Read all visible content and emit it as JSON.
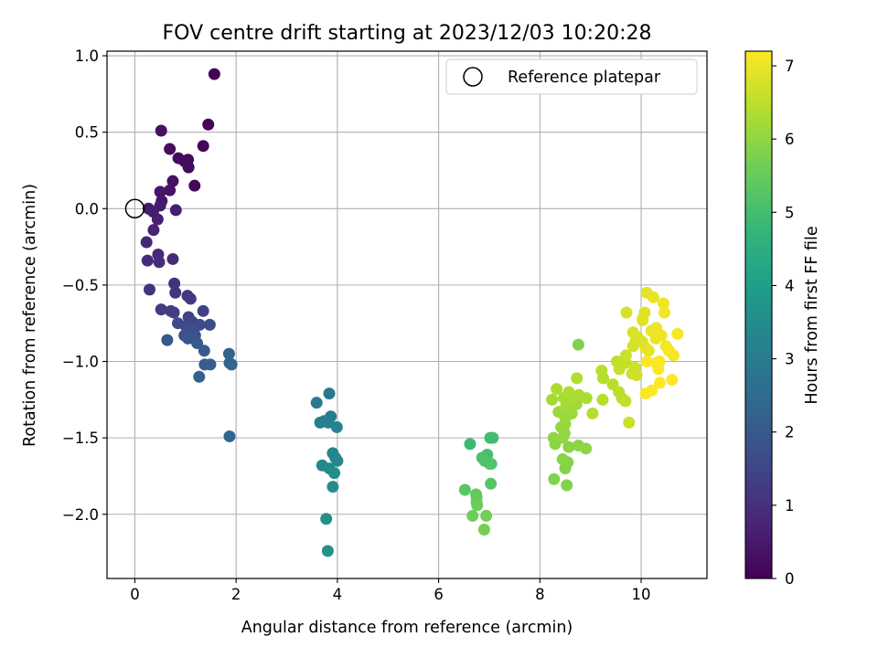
{
  "chart_data": {
    "type": "scatter",
    "title": "FOV centre drift starting at 2023/12/03 10:20:28",
    "xlabel": "Angular distance from reference (arcmin)",
    "ylabel": "Rotation from reference (arcmin)",
    "xlim": [
      -0.55,
      11.3
    ],
    "ylim": [
      -2.42,
      1.03
    ],
    "xticks": [
      0,
      2,
      4,
      6,
      8,
      10
    ],
    "yticks": [
      1.0,
      0.5,
      0.0,
      -0.5,
      -1.0,
      -1.5,
      -2.0
    ],
    "xtick_labels": [
      "0",
      "2",
      "4",
      "6",
      "8",
      "10"
    ],
    "ytick_labels": [
      "1.0",
      "0.5",
      "0.0",
      "−0.5",
      "−1.0",
      "−1.5",
      "−2.0"
    ],
    "grid": true,
    "legend": {
      "placement": "top-right",
      "label": "Reference platepar"
    },
    "colormap": "viridis",
    "colorbar": {
      "label": "Hours from first FF file",
      "range": [
        0,
        7.2
      ],
      "ticks": [
        0,
        1,
        2,
        3,
        4,
        5,
        6,
        7
      ],
      "tick_labels": [
        "0",
        "1",
        "2",
        "3",
        "4",
        "5",
        "6",
        "7"
      ]
    },
    "reference_point": {
      "x": 0,
      "y": 0
    },
    "points": [
      [
        1.57,
        0.88,
        0.05
      ],
      [
        1.45,
        0.55,
        0.08
      ],
      [
        1.35,
        0.41,
        0.1
      ],
      [
        1.18,
        0.15,
        0.12
      ],
      [
        1.05,
        0.32,
        0.15
      ],
      [
        1.06,
        0.27,
        0.18
      ],
      [
        0.98,
        0.31,
        0.2
      ],
      [
        0.86,
        0.33,
        0.22
      ],
      [
        0.69,
        0.39,
        0.25
      ],
      [
        0.52,
        0.51,
        0.3
      ],
      [
        0.75,
        0.18,
        0.35
      ],
      [
        0.69,
        0.12,
        0.38
      ],
      [
        0.5,
        0.11,
        0.4
      ],
      [
        0.53,
        0.05,
        0.45
      ],
      [
        0.5,
        0.02,
        0.5
      ],
      [
        0.27,
        0.0,
        0.55
      ],
      [
        0.36,
        -0.02,
        0.58
      ],
      [
        0.81,
        -0.01,
        0.6
      ],
      [
        0.45,
        -0.07,
        0.65
      ],
      [
        0.37,
        -0.14,
        0.7
      ],
      [
        0.23,
        -0.22,
        0.75
      ],
      [
        0.46,
        -0.3,
        0.8
      ],
      [
        0.75,
        -0.33,
        0.85
      ],
      [
        0.25,
        -0.34,
        0.88
      ],
      [
        0.48,
        -0.35,
        0.9
      ],
      [
        0.78,
        -0.49,
        1.0
      ],
      [
        0.29,
        -0.53,
        1.05
      ],
      [
        0.8,
        -0.55,
        1.1
      ],
      [
        1.04,
        -0.57,
        1.15
      ],
      [
        1.1,
        -0.59,
        1.2
      ],
      [
        0.52,
        -0.66,
        1.25
      ],
      [
        0.71,
        -0.67,
        1.3
      ],
      [
        0.77,
        -0.68,
        1.35
      ],
      [
        1.35,
        -0.67,
        1.4
      ],
      [
        1.06,
        -0.71,
        1.45
      ],
      [
        1.13,
        -0.74,
        1.5
      ],
      [
        0.85,
        -0.75,
        1.55
      ],
      [
        1.01,
        -0.77,
        1.6
      ],
      [
        1.28,
        -0.76,
        1.65
      ],
      [
        1.48,
        -0.76,
        1.7
      ],
      [
        1.16,
        -0.8,
        1.75
      ],
      [
        0.98,
        -0.83,
        1.8
      ],
      [
        1.19,
        -0.83,
        1.85
      ],
      [
        1.05,
        -0.85,
        1.9
      ],
      [
        0.64,
        -0.86,
        1.95
      ],
      [
        1.23,
        -0.88,
        2.0
      ],
      [
        1.37,
        -0.93,
        2.05
      ],
      [
        1.38,
        -1.02,
        2.1
      ],
      [
        1.49,
        -1.02,
        2.15
      ],
      [
        1.27,
        -1.1,
        2.2
      ],
      [
        1.86,
        -0.95,
        2.25
      ],
      [
        1.87,
        -1.01,
        2.3
      ],
      [
        1.91,
        -1.02,
        2.35
      ],
      [
        1.87,
        -1.49,
        2.4
      ],
      [
        3.84,
        -1.21,
        2.9
      ],
      [
        3.59,
        -1.27,
        2.95
      ],
      [
        3.87,
        -1.36,
        3.0
      ],
      [
        3.74,
        -1.39,
        3.05
      ],
      [
        3.66,
        -1.4,
        3.1
      ],
      [
        3.82,
        -1.4,
        3.15
      ],
      [
        3.99,
        -1.43,
        3.2
      ],
      [
        3.91,
        -1.6,
        3.25
      ],
      [
        3.96,
        -1.63,
        3.3
      ],
      [
        4.0,
        -1.65,
        3.35
      ],
      [
        3.7,
        -1.68,
        3.4
      ],
      [
        3.84,
        -1.7,
        3.45
      ],
      [
        3.94,
        -1.73,
        3.5
      ],
      [
        3.91,
        -1.82,
        3.55
      ],
      [
        3.78,
        -2.03,
        3.6
      ],
      [
        3.81,
        -2.24,
        3.65
      ],
      [
        6.62,
        -1.54,
        4.9
      ],
      [
        7.02,
        -1.5,
        4.95
      ],
      [
        7.07,
        -1.5,
        5.0
      ],
      [
        6.96,
        -1.61,
        5.05
      ],
      [
        6.86,
        -1.63,
        5.1
      ],
      [
        6.91,
        -1.65,
        5.15
      ],
      [
        7.01,
        -1.67,
        5.2
      ],
      [
        7.04,
        -1.67,
        5.25
      ],
      [
        7.03,
        -1.8,
        5.3
      ],
      [
        6.52,
        -1.84,
        5.35
      ],
      [
        6.74,
        -1.87,
        5.4
      ],
      [
        6.75,
        -1.89,
        5.45
      ],
      [
        6.75,
        -1.92,
        5.5
      ],
      [
        6.76,
        -1.94,
        5.55
      ],
      [
        6.67,
        -2.01,
        5.6
      ],
      [
        6.94,
        -2.01,
        5.65
      ],
      [
        6.9,
        -2.1,
        5.7
      ],
      [
        8.76,
        -0.89,
        5.8
      ],
      [
        8.28,
        -1.77,
        5.82
      ],
      [
        8.53,
        -1.81,
        5.84
      ],
      [
        8.5,
        -1.7,
        5.86
      ],
      [
        8.55,
        -1.66,
        5.88
      ],
      [
        8.45,
        -1.64,
        5.9
      ],
      [
        8.3,
        -1.54,
        5.92
      ],
      [
        8.57,
        -1.56,
        5.94
      ],
      [
        8.76,
        -1.55,
        5.96
      ],
      [
        8.91,
        -1.57,
        5.98
      ],
      [
        8.27,
        -1.5,
        6.0
      ],
      [
        8.45,
        -1.5,
        6.02
      ],
      [
        8.49,
        -1.47,
        6.04
      ],
      [
        8.42,
        -1.43,
        6.06
      ],
      [
        8.5,
        -1.41,
        6.08
      ],
      [
        8.5,
        -1.37,
        6.1
      ],
      [
        8.63,
        -1.34,
        6.12
      ],
      [
        8.37,
        -1.33,
        6.14
      ],
      [
        8.57,
        -1.31,
        6.16
      ],
      [
        8.72,
        -1.28,
        6.18
      ],
      [
        8.52,
        -1.29,
        6.2
      ],
      [
        8.24,
        -1.25,
        6.22
      ],
      [
        8.47,
        -1.24,
        6.24
      ],
      [
        8.61,
        -1.25,
        6.26
      ],
      [
        8.77,
        -1.22,
        6.28
      ],
      [
        8.92,
        -1.24,
        6.3
      ],
      [
        8.33,
        -1.18,
        6.32
      ],
      [
        8.57,
        -1.2,
        6.34
      ],
      [
        8.73,
        -1.11,
        6.36
      ],
      [
        9.04,
        -1.34,
        6.38
      ],
      [
        9.24,
        -1.25,
        6.4
      ],
      [
        9.25,
        -1.11,
        6.42
      ],
      [
        9.22,
        -1.06,
        6.44
      ],
      [
        9.44,
        -1.15,
        6.46
      ],
      [
        9.56,
        -1.2,
        6.48
      ],
      [
        9.62,
        -1.24,
        6.5
      ],
      [
        9.69,
        -1.26,
        6.52
      ],
      [
        9.52,
        -1.0,
        6.54
      ],
      [
        9.58,
        -1.03,
        6.56
      ],
      [
        9.57,
        -1.05,
        6.58
      ],
      [
        9.7,
        -1.01,
        6.6
      ],
      [
        9.76,
        -1.4,
        6.62
      ],
      [
        9.7,
        -0.96,
        6.64
      ],
      [
        9.88,
        -1.04,
        6.66
      ],
      [
        9.82,
        -1.08,
        6.68
      ],
      [
        9.91,
        -1.09,
        6.7
      ],
      [
        9.84,
        -0.9,
        6.72
      ],
      [
        9.89,
        -0.87,
        6.74
      ],
      [
        9.71,
        -0.68,
        6.76
      ],
      [
        9.84,
        -0.81,
        6.78
      ],
      [
        9.93,
        -0.84,
        6.8
      ],
      [
        10.02,
        -0.87,
        6.82
      ],
      [
        10.03,
        -0.72,
        6.84
      ],
      [
        10.07,
        -0.68,
        6.86
      ],
      [
        10.03,
        -0.73,
        6.88
      ],
      [
        10.11,
        -0.55,
        6.9
      ],
      [
        10.08,
        -0.91,
        6.92
      ],
      [
        10.15,
        -0.93,
        6.94
      ],
      [
        10.24,
        -0.58,
        6.96
      ],
      [
        10.2,
        -0.8,
        6.98
      ],
      [
        10.29,
        -0.85,
        7.0
      ],
      [
        10.3,
        -0.78,
        7.02
      ],
      [
        10.4,
        -0.83,
        7.04
      ],
      [
        10.44,
        -0.62,
        7.06
      ],
      [
        10.46,
        -0.68,
        7.08
      ],
      [
        10.49,
        -0.9,
        7.1
      ],
      [
        10.55,
        -0.93,
        7.12
      ],
      [
        10.64,
        -0.96,
        7.13
      ],
      [
        10.72,
        -0.82,
        7.14
      ],
      [
        10.36,
        -1.0,
        7.15
      ],
      [
        10.11,
        -1.0,
        7.16
      ],
      [
        10.09,
        -1.21,
        7.17
      ],
      [
        10.21,
        -1.19,
        7.18
      ],
      [
        10.37,
        -1.14,
        7.19
      ],
      [
        10.61,
        -1.12,
        7.2
      ],
      [
        10.34,
        -1.05,
        7.2
      ],
      [
        10.3,
        -1.01,
        7.2
      ]
    ]
  }
}
